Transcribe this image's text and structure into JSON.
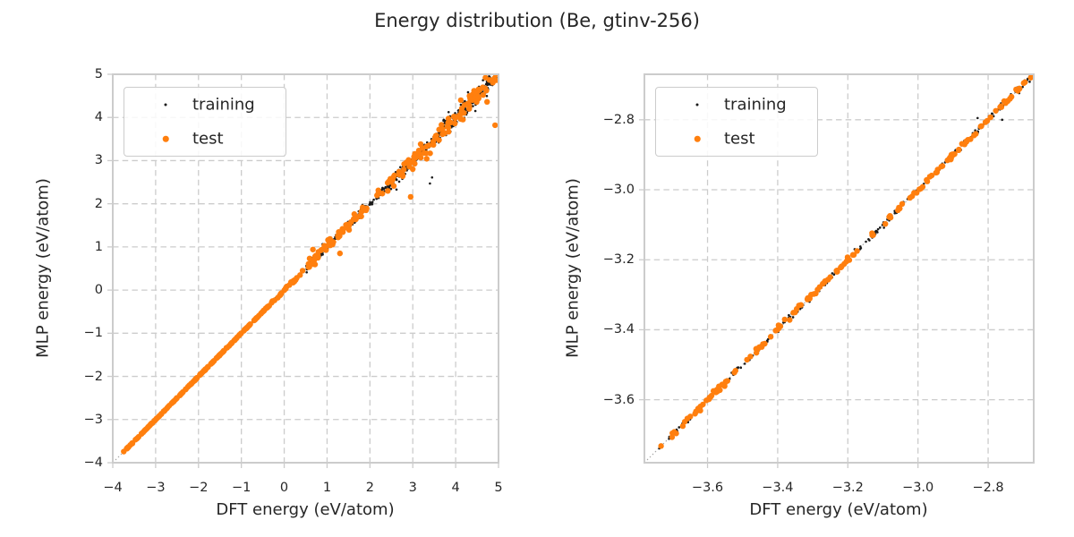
{
  "title": "Energy distribution (Be, gtinv-256)",
  "colors": {
    "training": "#1a1a1a",
    "test": "#ff7f0e",
    "grid": "#cccccc",
    "axes_border": "#cccccc",
    "tick": "#cccccc",
    "identity_line": "#a0a0a0",
    "text": "#262626",
    "background": "#ffffff"
  },
  "chart_data": [
    {
      "type": "scatter",
      "title": "",
      "xlabel": "DFT energy (eV/atom)",
      "ylabel": "MLP energy (eV/atom)",
      "xlim": [
        -4,
        5
      ],
      "ylim": [
        -4,
        5
      ],
      "xticks": {
        "values": [
          -4,
          -3,
          -2,
          -1,
          0,
          1,
          2,
          3,
          4,
          5
        ],
        "labels": [
          "−4",
          "−3",
          "−2",
          "−1",
          "0",
          "1",
          "2",
          "3",
          "4",
          "5"
        ]
      },
      "yticks": {
        "values": [
          5,
          4,
          3,
          2,
          1,
          0,
          -1,
          -2,
          -3,
          -4
        ],
        "labels": [
          "5",
          "4",
          "3",
          "2",
          "1",
          "0",
          "−1",
          "−2",
          "−3",
          "−4"
        ]
      },
      "grid": {
        "visible": true,
        "style": "dashed"
      },
      "identity_line": true,
      "legend": {
        "position": "upper left",
        "entries": [
          "training",
          "test"
        ]
      },
      "relationship": "parity plot: MLP energy ≈ DFT energy along y=x from −3.75 to 4.95 eV/atom; scatter widens above 0 eV/atom",
      "series": [
        {
          "name": "training",
          "color": "#1a1a1a",
          "marker_radius_px": 1.3,
          "seed": 101,
          "segments": [
            {
              "x_range": [
                -3.76,
                -0.4
              ],
              "n": 300,
              "noise_sd": 0.004
            },
            {
              "x_range": [
                -0.4,
                0.45
              ],
              "n": 55,
              "noise_sd": 0.013
            },
            {
              "x_range": [
                0.45,
                2.3
              ],
              "n": 150,
              "noise_sd": 0.05
            },
            {
              "x_range": [
                2.3,
                3.6
              ],
              "n": 150,
              "noise_sd": 0.075
            },
            {
              "x_range": [
                3.6,
                4.97
              ],
              "n": 230,
              "noise_sd": 0.09
            }
          ],
          "outliers": [
            [
              3.45,
              2.61
            ],
            [
              3.4,
              2.47
            ],
            [
              2.62,
              2.33
            ]
          ]
        },
        {
          "name": "test",
          "color": "#ff7f0e",
          "marker_radius_px": 3.2,
          "seed": 202,
          "segments": [
            {
              "x_range": [
                -3.76,
                -0.4
              ],
              "n": 190,
              "noise_sd": 0.004
            },
            {
              "x_range": [
                -0.4,
                0.45
              ],
              "n": 28,
              "noise_sd": 0.016
            },
            {
              "x_range": [
                0.45,
                2.3
              ],
              "n": 70,
              "noise_sd": 0.06
            },
            {
              "x_range": [
                2.3,
                3.6
              ],
              "n": 48,
              "noise_sd": 0.095
            },
            {
              "x_range": [
                3.6,
                4.97
              ],
              "n": 60,
              "noise_sd": 0.1
            }
          ],
          "outliers": [
            [
              1.3,
              0.85
            ],
            [
              2.95,
              2.16
            ],
            [
              4.92,
              3.82
            ],
            [
              0.67,
              0.94
            ]
          ]
        }
      ]
    },
    {
      "type": "scatter",
      "title": "",
      "xlabel": "DFT energy (eV/atom)",
      "ylabel": "MLP energy (eV/atom)",
      "xlim": [
        -3.78,
        -2.67
      ],
      "ylim": [
        -3.78,
        -2.67
      ],
      "xticks": {
        "values": [
          -3.6,
          -3.4,
          -3.2,
          -3.0,
          -2.8
        ],
        "labels": [
          "−3.6",
          "−3.4",
          "−3.2",
          "−3.0",
          "−2.8"
        ]
      },
      "yticks": {
        "values": [
          -2.8,
          -3.0,
          -3.2,
          -3.4,
          -3.6
        ],
        "labels": [
          "−2.8",
          "−3.0",
          "−3.2",
          "−3.4",
          "−3.6"
        ]
      },
      "grid": {
        "visible": true,
        "style": "dashed"
      },
      "identity_line": true,
      "legend": {
        "position": "upper left",
        "entries": [
          "training",
          "test"
        ]
      },
      "relationship": "zoomed parity plot of the dense low-energy branch; points lie tightly on y=x from −3.73 to the upper-right corner",
      "series": [
        {
          "name": "training",
          "color": "#1a1a1a",
          "marker_radius_px": 1.3,
          "seed": 303,
          "segments": [
            {
              "x_range": [
                -3.745,
                -3.73
              ],
              "n": 2,
              "noise_sd": 0.002
            },
            {
              "x_range": [
                -3.71,
                -2.64
              ],
              "n": 250,
              "noise_sd": 0.0045
            }
          ],
          "outliers": [
            [
              -2.83,
              -2.795
            ],
            [
              -2.76,
              -2.8
            ]
          ]
        },
        {
          "name": "test",
          "color": "#ff7f0e",
          "marker_radius_px": 3.2,
          "seed": 404,
          "segments": [
            {
              "x_range": [
                -3.735,
                -3.728
              ],
              "n": 1,
              "noise_sd": 0.001
            },
            {
              "x_range": [
                -3.705,
                -2.64
              ],
              "n": 170,
              "noise_sd": 0.0035
            }
          ],
          "outliers": []
        }
      ]
    }
  ]
}
